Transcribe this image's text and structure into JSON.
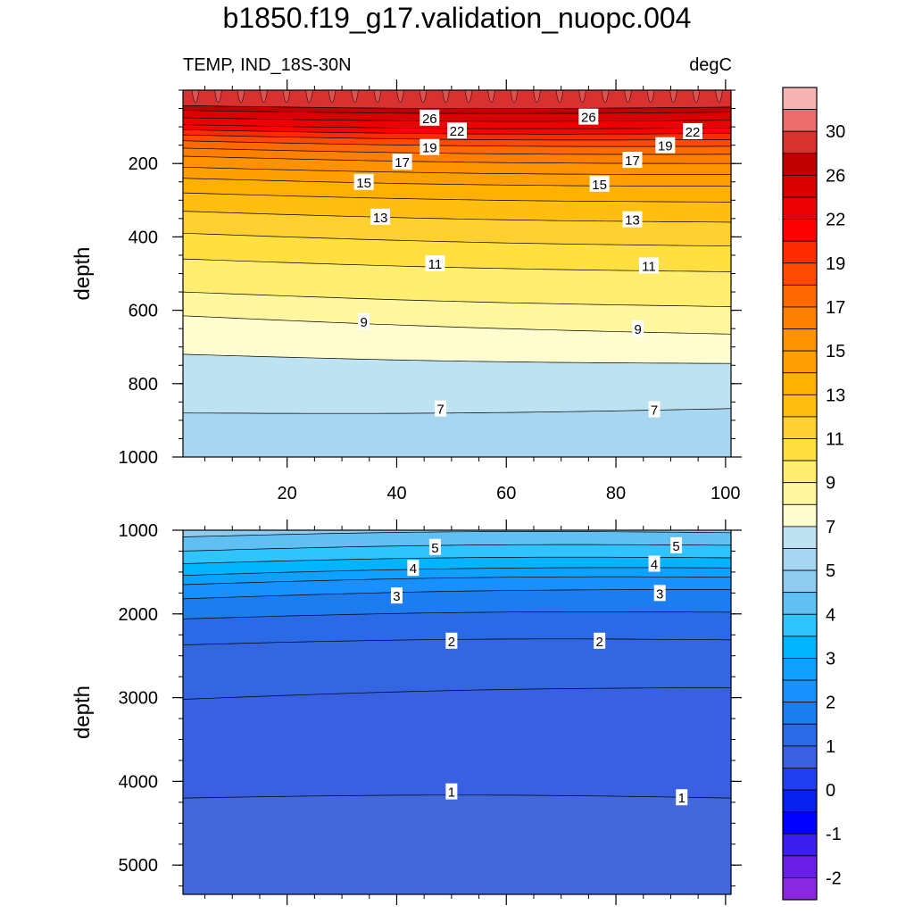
{
  "figure": {
    "title": "b1850.f19_g17.validation_nuopc.004",
    "left_subtitle": "TEMP, IND_18S-30N",
    "right_subtitle": "degC"
  },
  "chart_data": [
    {
      "type": "contour",
      "panel": "upper",
      "ylabel": "depth",
      "xlim": [
        1,
        101
      ],
      "ylim": [
        1000,
        0
      ],
      "x_ticks": [
        20,
        40,
        60,
        80,
        100
      ],
      "y_ticks": [
        200,
        400,
        600,
        800,
        1000
      ],
      "contour_lines": [
        {
          "level": 7,
          "depth_left": 880,
          "depth_right": 868
        },
        {
          "level": 8,
          "depth_left": 720,
          "depth_right": 745
        },
        {
          "level": 9,
          "depth_left": 615,
          "depth_right": 665
        },
        {
          "level": 10,
          "depth_left": 550,
          "depth_right": 590
        },
        {
          "level": 11,
          "depth_left": 460,
          "depth_right": 495
        },
        {
          "level": 12,
          "depth_left": 390,
          "depth_right": 425
        },
        {
          "level": 13,
          "depth_left": 330,
          "depth_right": 360
        },
        {
          "level": 14,
          "depth_left": 280,
          "depth_right": 305
        },
        {
          "level": 15,
          "depth_left": 240,
          "depth_right": 262
        },
        {
          "level": 16,
          "depth_left": 210,
          "depth_right": 230
        },
        {
          "level": 17,
          "depth_left": 180,
          "depth_right": 200
        },
        {
          "level": 18,
          "depth_left": 158,
          "depth_right": 175
        },
        {
          "level": 19,
          "depth_left": 138,
          "depth_right": 153
        },
        {
          "level": 20,
          "depth_left": 122,
          "depth_right": 135
        },
        {
          "level": 21,
          "depth_left": 108,
          "depth_right": 118
        },
        {
          "level": 22,
          "depth_left": 94,
          "depth_right": 103
        },
        {
          "level": 24,
          "depth_left": 75,
          "depth_right": 82
        },
        {
          "level": 26,
          "depth_left": 55,
          "depth_right": 60
        },
        {
          "level": 27,
          "depth_left": 42,
          "depth_right": 46
        }
      ],
      "line_labels": [
        {
          "text": "26",
          "x": 46,
          "depth": 75
        },
        {
          "text": "26",
          "x": 75,
          "depth": 72
        },
        {
          "text": "22",
          "x": 51,
          "depth": 110
        },
        {
          "text": "22",
          "x": 94,
          "depth": 112
        },
        {
          "text": "19",
          "x": 46,
          "depth": 155
        },
        {
          "text": "19",
          "x": 89,
          "depth": 150
        },
        {
          "text": "17",
          "x": 41,
          "depth": 195
        },
        {
          "text": "17",
          "x": 83,
          "depth": 190
        },
        {
          "text": "15",
          "x": 34,
          "depth": 250
        },
        {
          "text": "15",
          "x": 77,
          "depth": 255
        },
        {
          "text": "13",
          "x": 37,
          "depth": 345
        },
        {
          "text": "13",
          "x": 83,
          "depth": 352
        },
        {
          "text": "11",
          "x": 47,
          "depth": 472
        },
        {
          "text": "11",
          "x": 86,
          "depth": 478
        },
        {
          "text": "9",
          "x": 34,
          "depth": 630
        },
        {
          "text": "9",
          "x": 84,
          "depth": 650
        },
        {
          "text": "7",
          "x": 48,
          "depth": 868
        },
        {
          "text": "7",
          "x": 87,
          "depth": 870
        }
      ]
    },
    {
      "type": "contour",
      "panel": "lower",
      "ylabel": "depth",
      "xlim": [
        1,
        101
      ],
      "ylim": [
        5350,
        1000
      ],
      "y_ticks": [
        1000,
        2000,
        3000,
        4000,
        5000
      ],
      "contour_lines": [
        {
          "level": 6,
          "depth_left": 1080,
          "depth_right": 1030
        },
        {
          "level": 5,
          "depth_left": 1250,
          "depth_right": 1180
        },
        {
          "level": 4.5,
          "depth_left": 1400,
          "depth_right": 1330
        },
        {
          "level": 4,
          "depth_left": 1540,
          "depth_right": 1450
        },
        {
          "level": 3.5,
          "depth_left": 1650,
          "depth_right": 1560
        },
        {
          "level": 3,
          "depth_left": 1820,
          "depth_right": 1710
        },
        {
          "level": 2.5,
          "depth_left": 2060,
          "depth_right": 1980
        },
        {
          "level": 2,
          "depth_left": 2370,
          "depth_right": 2310
        },
        {
          "level": 1.5,
          "depth_left": 3020,
          "depth_right": 2880
        },
        {
          "level": 1,
          "depth_left": 4200,
          "depth_right": 4200
        }
      ],
      "line_labels": [
        {
          "text": "5",
          "x": 47,
          "depth": 1200
        },
        {
          "text": "5",
          "x": 91,
          "depth": 1180
        },
        {
          "text": "4",
          "x": 43,
          "depth": 1450
        },
        {
          "text": "4",
          "x": 87,
          "depth": 1400
        },
        {
          "text": "3",
          "x": 40,
          "depth": 1780
        },
        {
          "text": "3",
          "x": 88,
          "depth": 1750
        },
        {
          "text": "2",
          "x": 50,
          "depth": 2320
        },
        {
          "text": "2",
          "x": 77,
          "depth": 2320
        },
        {
          "text": "1",
          "x": 50,
          "depth": 4120
        },
        {
          "text": "1",
          "x": 92,
          "depth": 4190
        }
      ]
    }
  ],
  "colorbar": {
    "labels": [
      "30",
      "26",
      "22",
      "19",
      "17",
      "15",
      "13",
      "11",
      "9",
      "7",
      "5",
      "4",
      "3",
      "2",
      "1",
      "0",
      "-1",
      "-2"
    ],
    "colors": [
      "#f8b4b4",
      "#ea6c6c",
      "#d93030",
      "#c00000",
      "#da0000",
      "#ec0000",
      "#ff0000",
      "#ff2a00",
      "#ff4a00",
      "#ff6a00",
      "#ff8000",
      "#ff9200",
      "#ffa000",
      "#ffb000",
      "#ffbe10",
      "#ffd030",
      "#ffe040",
      "#ffee70",
      "#fff6a0",
      "#fffdd0",
      "#bde2f2",
      "#a6d6f0",
      "#8ecbef",
      "#60c0f4",
      "#30c4ff",
      "#00b4ff",
      "#10a0ff",
      "#1890ff",
      "#1c7cf0",
      "#2a6ae6",
      "#3860e0",
      "#2040f0",
      "#0820f0",
      "#0000ff",
      "#3c1ef0",
      "#6a1ee8",
      "#8a28e0"
    ]
  },
  "colors": {
    "upper_band_levels": [
      7,
      8,
      9,
      10,
      11,
      12,
      13,
      14,
      15,
      16,
      17,
      18,
      19,
      20,
      21,
      22,
      24,
      26,
      27
    ],
    "upper_band_colors": [
      "#a6d6f0",
      "#bde2f2",
      "#fffdd0",
      "#fff6a0",
      "#ffee70",
      "#ffe040",
      "#ffd030",
      "#ffbe10",
      "#ffb000",
      "#ffa000",
      "#ff9200",
      "#ff8000",
      "#ff6a00",
      "#ff4a00",
      "#ff2a00",
      "#ff0000",
      "#ec0000",
      "#da0000",
      "#c00000",
      "#d93030"
    ],
    "lower_band_colors": [
      "#8ecbef",
      "#60c0f4",
      "#30c4ff",
      "#00b4ff",
      "#10a0ff",
      "#1890ff",
      "#1c7cf0",
      "#2a6ae6",
      "#3366e0",
      "#3860e0",
      "#4268dc"
    ]
  }
}
